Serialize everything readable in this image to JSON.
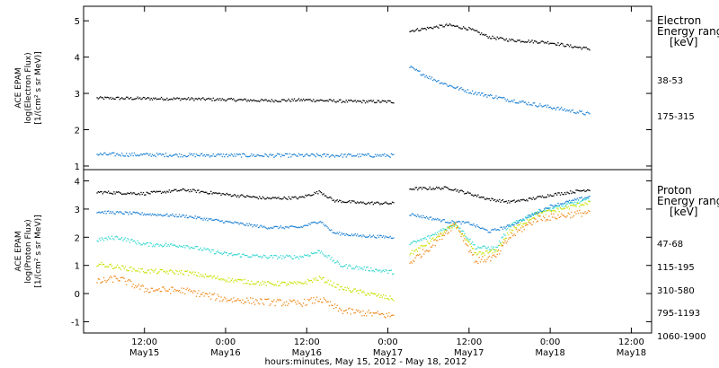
{
  "chart_data": [
    {
      "type": "scatter",
      "ylabel": [
        "ACE EPAM",
        "log(Electron Flux)",
        "[1/(cm² s sr MeV)]"
      ],
      "ylim": [
        0.9,
        5.4
      ],
      "yticks": [
        1,
        2,
        3,
        4,
        5
      ],
      "legend_title": [
        "Electron",
        "Energy range",
        "[keV]"
      ],
      "data_gap": [
        "2012-05-17T01:00",
        "2012-05-17T03:15"
      ],
      "series": [
        {
          "name": "38-53",
          "color": "#000000",
          "noise": 0.04,
          "points": [
            [
              "2012-05-15T05:00",
              2.87
            ],
            [
              "2012-05-15T12:00",
              2.86
            ],
            [
              "2012-05-15T18:00",
              2.85
            ],
            [
              "2012-05-16T00:00",
              2.83
            ],
            [
              "2012-05-16T06:00",
              2.8
            ],
            [
              "2012-05-16T12:00",
              2.82
            ],
            [
              "2012-05-16T18:00",
              2.78
            ],
            [
              "2012-05-17T01:00",
              2.77
            ],
            [
              "2012-05-17T03:15",
              4.72
            ],
            [
              "2012-05-17T06:00",
              4.8
            ],
            [
              "2012-05-17T09:00",
              4.88
            ],
            [
              "2012-05-17T12:00",
              4.78
            ],
            [
              "2012-05-17T15:00",
              4.55
            ],
            [
              "2012-05-17T18:00",
              4.47
            ],
            [
              "2012-05-18T00:00",
              4.4
            ],
            [
              "2012-05-18T03:00",
              4.3
            ],
            [
              "2012-05-18T06:00",
              4.22
            ]
          ]
        },
        {
          "name": "175-315",
          "color": "#1a7fd4",
          "noise": 0.05,
          "points": [
            [
              "2012-05-15T05:00",
              1.32
            ],
            [
              "2012-05-15T18:00",
              1.3
            ],
            [
              "2012-05-16T06:00",
              1.29
            ],
            [
              "2012-05-16T18:00",
              1.29
            ],
            [
              "2012-05-17T01:00",
              1.29
            ],
            [
              "2012-05-17T03:15",
              3.72
            ],
            [
              "2012-05-17T06:00",
              3.45
            ],
            [
              "2012-05-17T09:00",
              3.22
            ],
            [
              "2012-05-17T12:00",
              3.05
            ],
            [
              "2012-05-17T18:00",
              2.82
            ],
            [
              "2012-05-18T00:00",
              2.62
            ],
            [
              "2012-05-18T06:00",
              2.42
            ]
          ]
        }
      ]
    },
    {
      "type": "scatter",
      "ylabel": [
        "ACE EPAM",
        "log(Proton Flux)",
        "[1/(cm² s sr MeV)]"
      ],
      "ylim": [
        -1.4,
        4.4
      ],
      "yticks": [
        -1,
        0,
        1,
        2,
        3,
        4
      ],
      "legend_title": [
        "Proton",
        "Energy range",
        "[keV]"
      ],
      "data_gap": [
        "2012-05-17T01:00",
        "2012-05-17T03:15"
      ],
      "series": [
        {
          "name": "47-68",
          "color": "#000000",
          "noise": 0.05,
          "points": [
            [
              "2012-05-15T05:00",
              3.6
            ],
            [
              "2012-05-15T12:00",
              3.55
            ],
            [
              "2012-05-15T18:00",
              3.68
            ],
            [
              "2012-05-16T00:00",
              3.52
            ],
            [
              "2012-05-16T06:00",
              3.38
            ],
            [
              "2012-05-16T11:00",
              3.4
            ],
            [
              "2012-05-16T14:00",
              3.62
            ],
            [
              "2012-05-16T16:00",
              3.3
            ],
            [
              "2012-05-16T20:00",
              3.22
            ],
            [
              "2012-05-17T01:00",
              3.2
            ],
            [
              "2012-05-17T03:15",
              3.72
            ],
            [
              "2012-05-17T09:00",
              3.75
            ],
            [
              "2012-05-17T12:00",
              3.55
            ],
            [
              "2012-05-17T15:00",
              3.35
            ],
            [
              "2012-05-17T18:00",
              3.25
            ],
            [
              "2012-05-17T21:00",
              3.35
            ],
            [
              "2012-05-18T00:00",
              3.5
            ],
            [
              "2012-05-18T06:00",
              3.7
            ]
          ]
        },
        {
          "name": "115-195",
          "color": "#1a7fd4",
          "noise": 0.05,
          "points": [
            [
              "2012-05-15T05:00",
              2.9
            ],
            [
              "2012-05-15T10:00",
              2.85
            ],
            [
              "2012-05-15T18:00",
              2.75
            ],
            [
              "2012-05-16T00:00",
              2.55
            ],
            [
              "2012-05-16T06:00",
              2.35
            ],
            [
              "2012-05-16T11:00",
              2.35
            ],
            [
              "2012-05-16T14:00",
              2.58
            ],
            [
              "2012-05-16T16:00",
              2.15
            ],
            [
              "2012-05-16T20:00",
              2.05
            ],
            [
              "2012-05-17T01:00",
              2.0
            ],
            [
              "2012-05-17T03:15",
              2.82
            ],
            [
              "2012-05-17T09:00",
              2.55
            ],
            [
              "2012-05-17T12:00",
              2.5
            ],
            [
              "2012-05-17T15:00",
              2.2
            ],
            [
              "2012-05-17T18:00",
              2.4
            ],
            [
              "2012-05-18T00:00",
              3.1
            ],
            [
              "2012-05-18T06:00",
              3.45
            ]
          ]
        },
        {
          "name": "310-580",
          "color": "#33d6d0",
          "noise": 0.07,
          "points": [
            [
              "2012-05-15T05:00",
              1.9
            ],
            [
              "2012-05-15T08:00",
              2.0
            ],
            [
              "2012-05-15T12:00",
              1.75
            ],
            [
              "2012-05-15T18:00",
              1.7
            ],
            [
              "2012-05-16T00:00",
              1.4
            ],
            [
              "2012-05-16T06:00",
              1.3
            ],
            [
              "2012-05-16T11:00",
              1.3
            ],
            [
              "2012-05-16T14:00",
              1.5
            ],
            [
              "2012-05-16T17:00",
              1.0
            ],
            [
              "2012-05-17T01:00",
              0.75
            ],
            [
              "2012-05-17T03:15",
              1.75
            ],
            [
              "2012-05-17T06:00",
              2.0
            ],
            [
              "2012-05-17T10:00",
              2.5
            ],
            [
              "2012-05-17T13:00",
              1.65
            ],
            [
              "2012-05-17T16:00",
              1.6
            ],
            [
              "2012-05-17T18:00",
              2.4
            ],
            [
              "2012-05-17T22:00",
              2.9
            ],
            [
              "2012-05-18T06:00",
              3.35
            ]
          ]
        },
        {
          "name": "795-1193",
          "color": "#c8e000",
          "noise": 0.08,
          "points": [
            [
              "2012-05-15T05:00",
              1.05
            ],
            [
              "2012-05-15T12:00",
              0.8
            ],
            [
              "2012-05-15T18:00",
              0.75
            ],
            [
              "2012-05-16T00:00",
              0.5
            ],
            [
              "2012-05-16T06:00",
              0.35
            ],
            [
              "2012-05-16T11:00",
              0.35
            ],
            [
              "2012-05-16T14:00",
              0.55
            ],
            [
              "2012-05-16T17:00",
              0.2
            ],
            [
              "2012-05-17T01:00",
              -0.2
            ],
            [
              "2012-05-17T03:15",
              1.4
            ],
            [
              "2012-05-17T06:00",
              1.8
            ],
            [
              "2012-05-17T10:00",
              2.45
            ],
            [
              "2012-05-17T13:00",
              1.4
            ],
            [
              "2012-05-17T16:00",
              1.5
            ],
            [
              "2012-05-17T18:00",
              2.2
            ],
            [
              "2012-05-17T22:00",
              2.8
            ],
            [
              "2012-05-18T06:00",
              3.25
            ]
          ]
        },
        {
          "name": "1060-1900",
          "color": "#f08a1c",
          "noise": 0.12,
          "points": [
            [
              "2012-05-15T05:00",
              0.4
            ],
            [
              "2012-05-15T08:00",
              0.55
            ],
            [
              "2012-05-15T12:00",
              0.15
            ],
            [
              "2012-05-15T18:00",
              0.1
            ],
            [
              "2012-05-16T00:00",
              -0.2
            ],
            [
              "2012-05-16T06:00",
              -0.3
            ],
            [
              "2012-05-16T11:00",
              -0.35
            ],
            [
              "2012-05-16T14:00",
              -0.2
            ],
            [
              "2012-05-16T17:00",
              -0.6
            ],
            [
              "2012-05-17T01:00",
              -0.8
            ],
            [
              "2012-05-17T03:15",
              1.1
            ],
            [
              "2012-05-17T06:00",
              1.6
            ],
            [
              "2012-05-17T10:00",
              2.5
            ],
            [
              "2012-05-17T13:00",
              1.15
            ],
            [
              "2012-05-17T16:00",
              1.3
            ],
            [
              "2012-05-17T18:00",
              2.0
            ],
            [
              "2012-05-17T22:00",
              2.65
            ],
            [
              "2012-05-18T06:00",
              2.9
            ]
          ]
        }
      ]
    }
  ],
  "x_axis": {
    "range": [
      "2012-05-15T03:00",
      "2012-05-18T15:00"
    ],
    "ticks": [
      {
        "time": "2012-05-15T12:00",
        "hm": "12:00",
        "day": "May15"
      },
      {
        "time": "2012-05-16T00:00",
        "hm": "0:00",
        "day": "May16"
      },
      {
        "time": "2012-05-16T12:00",
        "hm": "12:00",
        "day": "May16"
      },
      {
        "time": "2012-05-17T00:00",
        "hm": "0:00",
        "day": "May17"
      },
      {
        "time": "2012-05-17T12:00",
        "hm": "12:00",
        "day": "May17"
      },
      {
        "time": "2012-05-18T00:00",
        "hm": "0:00",
        "day": "May18"
      },
      {
        "time": "2012-05-18T12:00",
        "hm": "12:00",
        "day": "May18"
      }
    ],
    "title": "hours:minutes, May 15, 2012 - May 18, 2012"
  }
}
